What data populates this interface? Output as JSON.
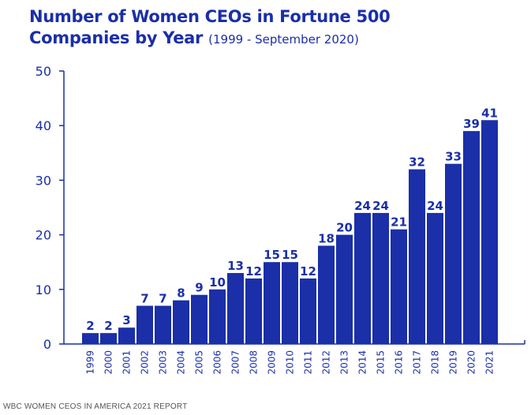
{
  "title": {
    "line1": "Number of Women CEOs in Fortune 500",
    "line2": "Companies by Year",
    "subtitle": "(1999 - September 2020)"
  },
  "source": "WBC WOMEN CEOS IN AMERICA 2021 REPORT",
  "chart_data": {
    "type": "bar",
    "categories": [
      "1999",
      "2000",
      "2001",
      "2002",
      "2003",
      "2004",
      "2005",
      "2006",
      "2007",
      "2008",
      "2009",
      "2010",
      "2011",
      "2012",
      "2013",
      "2014",
      "2015",
      "2016",
      "2017",
      "2018",
      "2019",
      "2020",
      "2021"
    ],
    "values": [
      2,
      2,
      3,
      7,
      7,
      8,
      9,
      10,
      13,
      12,
      15,
      15,
      12,
      18,
      20,
      24,
      24,
      21,
      32,
      24,
      33,
      39,
      41
    ],
    "ylim": [
      0,
      50
    ],
    "yticks": [
      0,
      10,
      20,
      30,
      40,
      50
    ],
    "data_labels": true,
    "grid": false,
    "bar_color": "#1a2fa8",
    "text_color": "#1a2fa8"
  }
}
